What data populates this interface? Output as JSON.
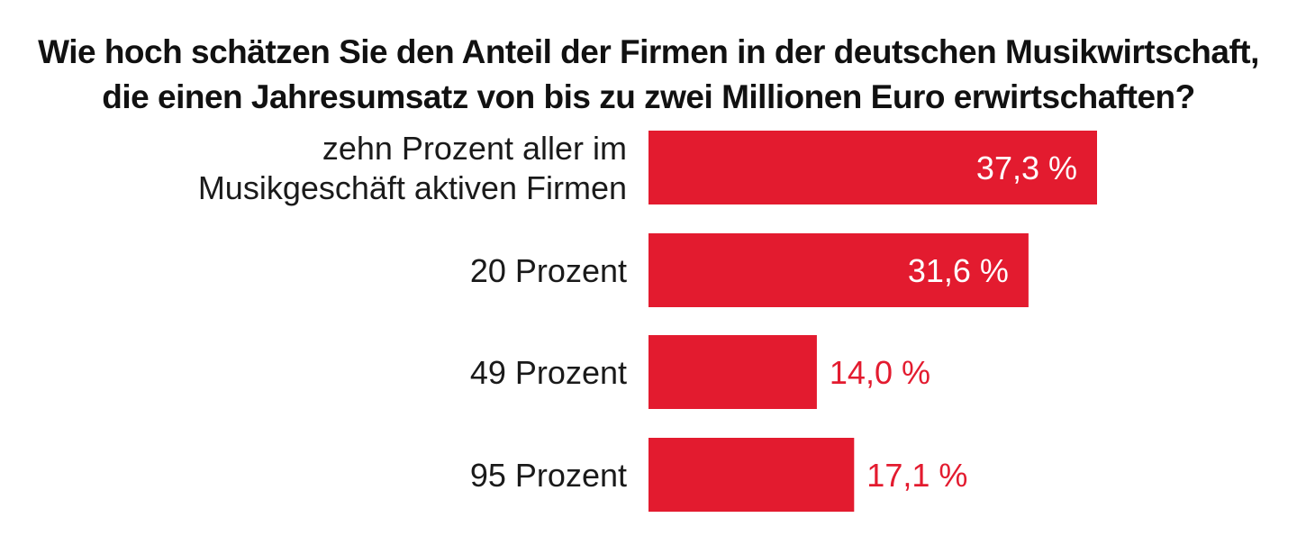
{
  "chart_data": {
    "type": "bar",
    "orientation": "horizontal",
    "title_lines": [
      "Wie hoch schätzen Sie den Anteil der Firmen in der deutschen Musikwirtschaft,",
      "die einen Jahresumsatz von bis zu zwei Millionen Euro erwirtschaften?"
    ],
    "categories": [
      [
        "zehn Prozent aller im",
        "Musikgeschäft aktiven Firmen"
      ],
      [
        "20 Prozent"
      ],
      [
        "49 Prozent"
      ],
      [
        "95 Prozent"
      ]
    ],
    "values": [
      37.3,
      31.6,
      14.0,
      17.1
    ],
    "value_labels": [
      "37,3 %",
      "31,6 %",
      "14,0 %",
      "17,1 %"
    ],
    "unit": "%",
    "xlim": [
      0,
      37.3
    ],
    "grid": false,
    "legend": "none",
    "colors": {
      "bar": "#e31b2f",
      "label_inside": "#ffffff",
      "label_outside": "#e31b2f"
    }
  }
}
